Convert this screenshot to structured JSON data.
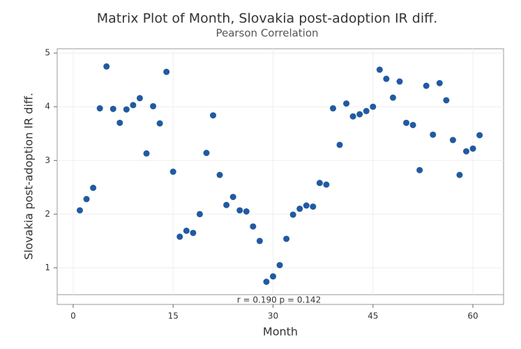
{
  "chart_data": {
    "type": "scatter",
    "title": "Matrix Plot of Month, Slovakia post-adoption IR diff.",
    "subtitle": "Pearson Correlation",
    "x_label": "Month",
    "y_label": "Slovakia post-adoption IR diff.",
    "annotation": "r = 0.190  p = 0.142",
    "color": "#1f5aa6",
    "grid": true,
    "x": [
      1,
      2,
      3,
      4,
      5,
      6,
      7,
      8,
      9,
      10,
      11,
      12,
      13,
      14,
      15,
      16,
      17,
      18,
      19,
      20,
      21,
      22,
      23,
      24,
      25,
      26,
      27,
      28,
      29,
      30,
      31,
      32,
      33,
      34,
      35,
      36,
      37,
      38,
      39,
      40,
      41,
      42,
      43,
      44,
      45,
      46,
      47,
      48,
      49,
      50,
      51,
      52,
      53,
      54,
      55,
      56,
      57,
      58,
      59,
      60,
      61
    ],
    "values": [
      2.07,
      2.28,
      2.49,
      3.97,
      4.75,
      3.96,
      3.7,
      3.95,
      4.03,
      4.16,
      3.13,
      4.01,
      3.69,
      4.65,
      2.79,
      1.58,
      1.69,
      1.65,
      2.0,
      3.14,
      3.84,
      2.73,
      2.17,
      2.32,
      2.07,
      2.05,
      1.77,
      1.5,
      0.74,
      0.84,
      1.05,
      1.54,
      1.99,
      2.1,
      2.16,
      2.14,
      2.58,
      2.55,
      3.97,
      3.29,
      4.06,
      3.82,
      3.86,
      3.92,
      4.0,
      4.69,
      4.52,
      4.17,
      4.47,
      3.7,
      3.66,
      2.82,
      4.39,
      3.48,
      4.44,
      4.12,
      3.38,
      2.73,
      3.17,
      3.22,
      3.47
    ],
    "xlim": [
      -2.4,
      64.6
    ],
    "xticks": [
      0,
      15,
      30,
      45,
      60
    ],
    "ylim": [
      0.5,
      5.08
    ],
    "yticks": [
      1,
      2,
      3,
      4,
      5
    ]
  }
}
